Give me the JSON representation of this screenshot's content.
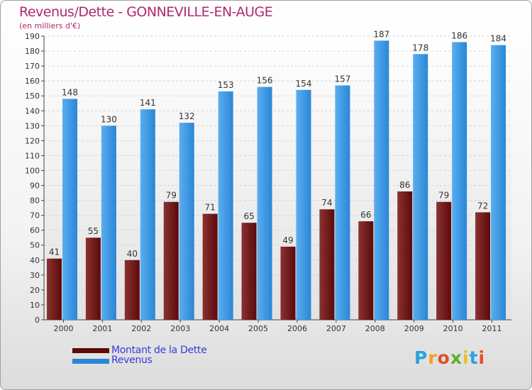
{
  "title": "Revenus/Dette - GONNEVILLE-EN-AUGE",
  "subtitle": "(en milliers d'€)",
  "legend": {
    "dette_label": "Montant de la Dette",
    "revenus_label": "Revenus"
  },
  "logo": {
    "text": "Proxiti"
  },
  "colors": {
    "dette_top": "#8b3232",
    "dette_bottom": "#5a0a0a",
    "revenus_top": "#5aaef0",
    "revenus_bottom": "#2a86d6",
    "title": "#b0296a",
    "legend_text": "#3a3adc"
  },
  "chart_data": {
    "type": "bar",
    "categories": [
      "2000",
      "2001",
      "2002",
      "2003",
      "2004",
      "2005",
      "2006",
      "2007",
      "2008",
      "2009",
      "2010",
      "2011"
    ],
    "series": [
      {
        "name": "Montant de la Dette",
        "values": [
          41,
          55,
          40,
          79,
          71,
          65,
          49,
          74,
          66,
          86,
          79,
          72
        ]
      },
      {
        "name": "Revenus",
        "values": [
          148,
          130,
          141,
          132,
          153,
          156,
          154,
          157,
          187,
          178,
          186,
          184
        ]
      }
    ],
    "ylim": [
      0,
      190
    ],
    "ytick_step": 10,
    "yticks": [
      "0",
      "10",
      "20",
      "30",
      "40",
      "50",
      "60",
      "70",
      "80",
      "90",
      "100",
      "110",
      "120",
      "130",
      "140",
      "150",
      "160",
      "170",
      "180",
      "190"
    ],
    "grid": true,
    "legend_position": "bottom-left"
  }
}
